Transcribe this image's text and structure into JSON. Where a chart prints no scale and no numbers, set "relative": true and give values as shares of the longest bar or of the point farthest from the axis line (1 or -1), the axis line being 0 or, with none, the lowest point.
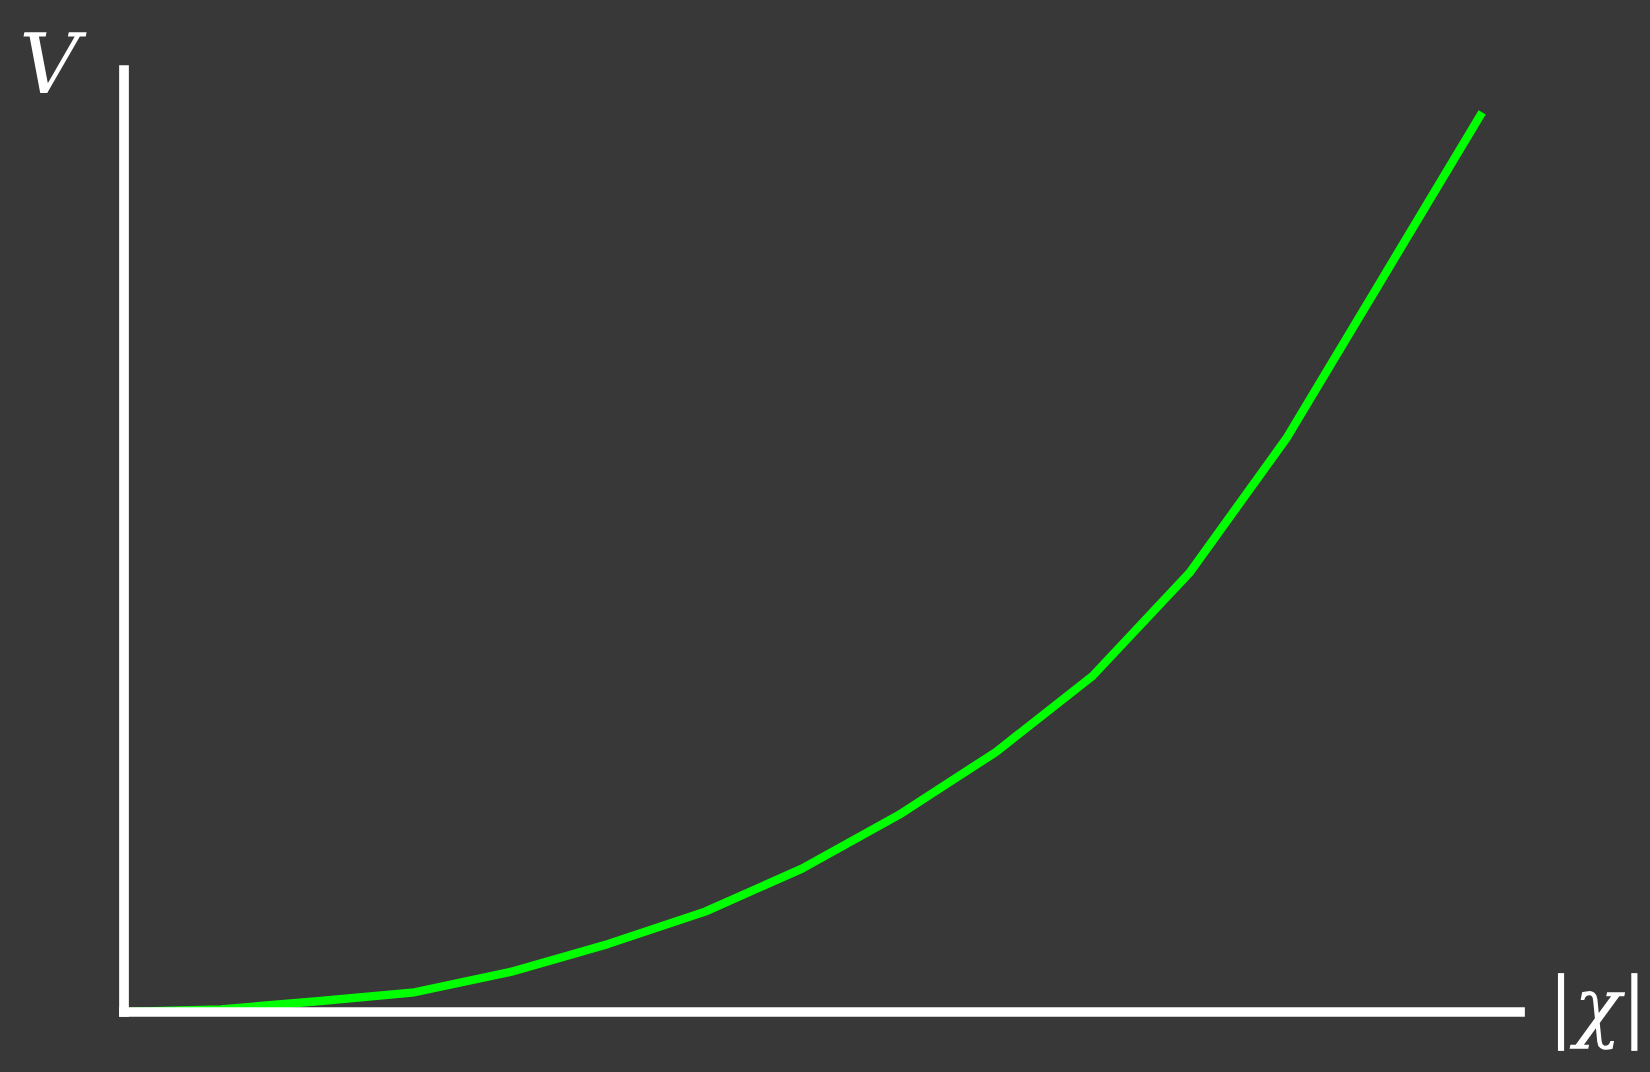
{
  "chart_data": {
    "type": "line",
    "relative": true,
    "xlabel": "|χ|",
    "ylabel": "V",
    "categories": [
      null,
      null,
      null,
      null,
      null,
      null,
      null,
      null,
      null,
      null,
      null,
      null,
      null,
      null,
      null
    ],
    "series": [
      {
        "color": "#00ff00",
        "values": [
          0,
          0.003,
          0.012,
          0.022,
          0.045,
          0.076,
          0.112,
          0.16,
          0.22,
          0.29,
          0.375,
          0.49,
          0.64,
          0.82,
          1.0
        ]
      }
    ],
    "grid": false,
    "legend": false,
    "marker": "none",
    "line_style": "solid"
  }
}
